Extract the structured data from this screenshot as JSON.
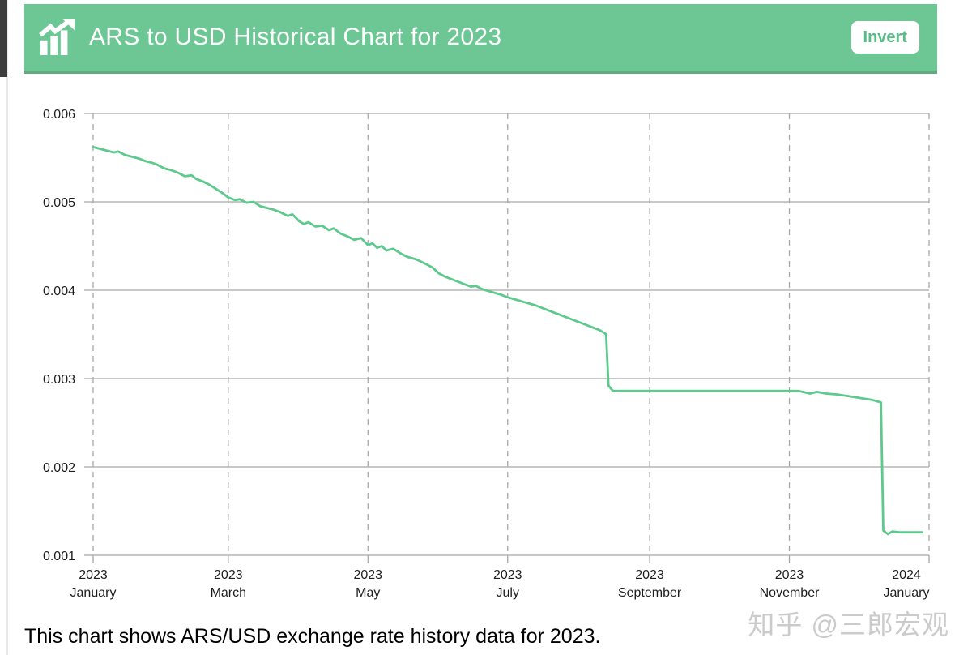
{
  "header": {
    "title": "ARS to USD Historical Chart for 2023",
    "invert_label": "Invert",
    "background_color": "#6cc794",
    "title_color": "#ffffff",
    "invert_text_color": "#56bd86",
    "icon": "bar-chart-trending-up-icon"
  },
  "caption": "This chart shows ARS/USD exchange rate history data for 2023.",
  "watermark": "知乎 @三郎宏观",
  "chart_data": {
    "type": "line",
    "title": "ARS to USD Historical Chart for 2023",
    "series_name": "ARS/USD exchange rate",
    "x_axis": {
      "unit": "day_of_year_2023",
      "range": [
        0,
        365
      ]
    },
    "y_axis": {
      "range": [
        0.001,
        0.006
      ],
      "ticks": [
        0.006,
        0.005,
        0.004,
        0.003,
        0.002,
        0.001
      ]
    },
    "x_ticks": [
      {
        "day": 0,
        "year": "2023",
        "month": "January"
      },
      {
        "day": 59,
        "year": "2023",
        "month": "March"
      },
      {
        "day": 120,
        "year": "2023",
        "month": "May"
      },
      {
        "day": 181,
        "year": "2023",
        "month": "July"
      },
      {
        "day": 243,
        "year": "2023",
        "month": "September"
      },
      {
        "day": 304,
        "year": "2023",
        "month": "November"
      },
      {
        "day": 365,
        "year": "2024",
        "month": "January"
      }
    ],
    "grid": {
      "horizontal": "solid",
      "vertical": "dashed",
      "color": "#a8a8a8"
    },
    "line_color": "#5ec98d",
    "series": [
      {
        "name": "ARS/USD",
        "points": [
          [
            0,
            0.00562
          ],
          [
            3,
            0.0056
          ],
          [
            6,
            0.00558
          ],
          [
            9,
            0.00556
          ],
          [
            11,
            0.00557
          ],
          [
            14,
            0.00553
          ],
          [
            17,
            0.00551
          ],
          [
            20,
            0.00549
          ],
          [
            23,
            0.00546
          ],
          [
            26,
            0.00544
          ],
          [
            28,
            0.00542
          ],
          [
            31,
            0.00538
          ],
          [
            34,
            0.00536
          ],
          [
            37,
            0.00533
          ],
          [
            40,
            0.00529
          ],
          [
            43,
            0.0053
          ],
          [
            45,
            0.00526
          ],
          [
            48,
            0.00523
          ],
          [
            51,
            0.00519
          ],
          [
            54,
            0.00514
          ],
          [
            57,
            0.00509
          ],
          [
            59,
            0.00505
          ],
          [
            62,
            0.00502
          ],
          [
            64,
            0.00503
          ],
          [
            67,
            0.00499
          ],
          [
            70,
            0.005
          ],
          [
            73,
            0.00495
          ],
          [
            76,
            0.00493
          ],
          [
            79,
            0.00491
          ],
          [
            82,
            0.00488
          ],
          [
            85,
            0.00484
          ],
          [
            87,
            0.00486
          ],
          [
            90,
            0.00478
          ],
          [
            92,
            0.00475
          ],
          [
            94,
            0.00477
          ],
          [
            97,
            0.00472
          ],
          [
            100,
            0.00473
          ],
          [
            103,
            0.00468
          ],
          [
            105,
            0.0047
          ],
          [
            108,
            0.00464
          ],
          [
            111,
            0.00461
          ],
          [
            114,
            0.00457
          ],
          [
            117,
            0.00459
          ],
          [
            120,
            0.00451
          ],
          [
            122,
            0.00453
          ],
          [
            124,
            0.00448
          ],
          [
            126,
            0.0045
          ],
          [
            128,
            0.00445
          ],
          [
            131,
            0.00447
          ],
          [
            134,
            0.00442
          ],
          [
            137,
            0.00438
          ],
          [
            141,
            0.00435
          ],
          [
            145,
            0.0043
          ],
          [
            148,
            0.00426
          ],
          [
            151,
            0.00419
          ],
          [
            154,
            0.00415
          ],
          [
            158,
            0.00411
          ],
          [
            162,
            0.00407
          ],
          [
            165,
            0.00404
          ],
          [
            167,
            0.00405
          ],
          [
            170,
            0.00401
          ],
          [
            174,
            0.00398
          ],
          [
            178,
            0.00395
          ],
          [
            181,
            0.00392
          ],
          [
            185,
            0.00389
          ],
          [
            189,
            0.00386
          ],
          [
            193,
            0.00383
          ],
          [
            197,
            0.00379
          ],
          [
            201,
            0.00375
          ],
          [
            205,
            0.00371
          ],
          [
            209,
            0.00367
          ],
          [
            212,
            0.00364
          ],
          [
            215,
            0.00361
          ],
          [
            218,
            0.00358
          ],
          [
            221,
            0.00355
          ],
          [
            223,
            0.00352
          ],
          [
            224,
            0.0035
          ],
          [
            225,
            0.00292
          ],
          [
            227,
            0.00286
          ],
          [
            232,
            0.00286
          ],
          [
            240,
            0.00286
          ],
          [
            250,
            0.00286
          ],
          [
            260,
            0.00286
          ],
          [
            270,
            0.00286
          ],
          [
            280,
            0.00286
          ],
          [
            290,
            0.00286
          ],
          [
            300,
            0.00286
          ],
          [
            308,
            0.00286
          ],
          [
            313,
            0.00283
          ],
          [
            316,
            0.00285
          ],
          [
            320,
            0.00283
          ],
          [
            325,
            0.00282
          ],
          [
            330,
            0.0028
          ],
          [
            335,
            0.00278
          ],
          [
            340,
            0.00276
          ],
          [
            344,
            0.00273
          ],
          [
            345,
            0.00128
          ],
          [
            347,
            0.00124
          ],
          [
            349,
            0.00127
          ],
          [
            352,
            0.00126
          ],
          [
            356,
            0.00126
          ],
          [
            360,
            0.00126
          ],
          [
            362,
            0.00126
          ]
        ]
      }
    ]
  }
}
